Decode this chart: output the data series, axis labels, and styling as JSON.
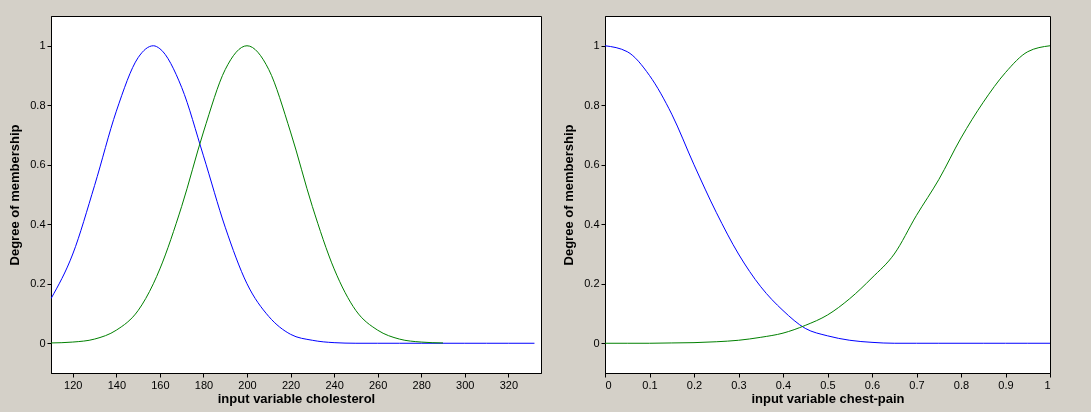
{
  "chart_data": [
    {
      "type": "line",
      "xlabel": "input   variable   cholesterol",
      "ylabel": "Degree   of    membership",
      "xlim": [
        110,
        335
      ],
      "ylim": [
        -0.1,
        1.1
      ],
      "xticks": [
        120,
        140,
        160,
        180,
        200,
        220,
        240,
        260,
        280,
        300,
        320
      ],
      "yticks": [
        0,
        0.2,
        0.4,
        0.6,
        0.8,
        1
      ],
      "grid": false,
      "x": [
        110,
        120,
        130,
        140,
        150,
        157,
        160,
        170,
        180,
        190,
        200,
        210,
        220,
        230,
        240,
        250,
        260,
        270,
        280,
        290,
        300,
        310,
        320,
        332
      ],
      "series": [
        {
          "color": "#0000ff",
          "values": [
            0.15,
            0.3,
            0.53,
            0.78,
            0.96,
            1,
            0.99,
            0.86,
            0.63,
            0.39,
            0.2,
            0.09,
            0.03,
            0.01,
            0.002,
            0,
            0,
            0,
            0,
            0,
            0,
            0,
            0,
            0
          ]
        },
        {
          "color": "#008000",
          "values": [
            0.001,
            0.004,
            0.014,
            0.044,
            0.11,
            0.2,
            0.25,
            0.46,
            0.71,
            0.92,
            1,
            0.92,
            0.71,
            0.46,
            0.25,
            0.11,
            0.044,
            0.014,
            0.004,
            0.001,
            null,
            null,
            null,
            null
          ]
        }
      ]
    },
    {
      "type": "line",
      "xlabel": "input   variable   chest-pain",
      "ylabel": "Degree   of    membership",
      "xlim": [
        0,
        1
      ],
      "ylim": [
        -0.1,
        1.1
      ],
      "xticks": [
        0,
        0.1,
        0.2,
        0.3,
        0.4,
        0.5,
        0.6,
        0.7,
        0.8,
        0.9,
        1
      ],
      "yticks": [
        0,
        0.2,
        0.4,
        0.6,
        0.8,
        1
      ],
      "grid": false,
      "x": [
        0,
        0.05,
        0.1,
        0.15,
        0.2,
        0.25,
        0.3,
        0.35,
        0.4,
        0.45,
        0.5,
        0.55,
        0.6,
        0.65,
        0.7,
        0.75,
        0.8,
        0.85,
        0.9,
        0.95,
        1
      ],
      "series": [
        {
          "color": "#0000ff",
          "values": [
            1,
            0.98,
            0.9,
            0.77,
            0.6,
            0.44,
            0.3,
            0.19,
            0.11,
            0.05,
            0.025,
            0.01,
            0.003,
            0,
            0,
            0,
            0,
            0,
            0,
            0,
            0
          ]
        },
        {
          "color": "#008000",
          "values": [
            0,
            0,
            0,
            0.001,
            0.002,
            0.005,
            0.01,
            0.02,
            0.034,
            0.06,
            0.095,
            0.15,
            0.22,
            0.3,
            0.43,
            0.55,
            0.69,
            0.81,
            0.91,
            0.98,
            1
          ]
        }
      ]
    }
  ]
}
